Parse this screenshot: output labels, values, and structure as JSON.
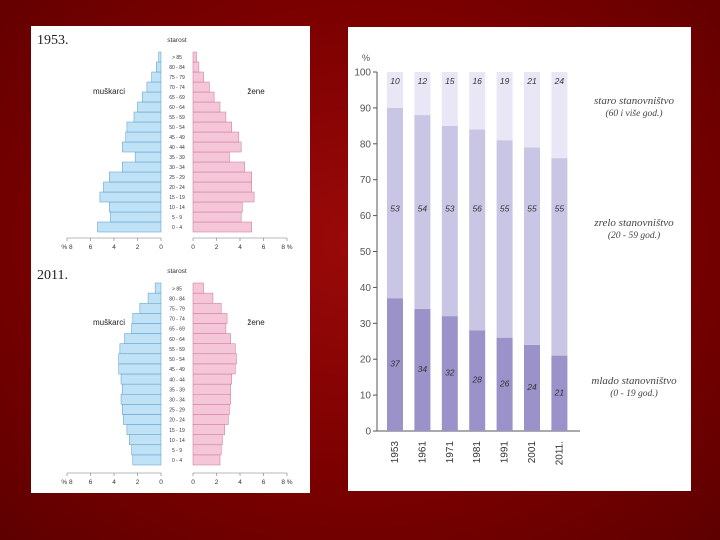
{
  "colors": {
    "male": "#bfe2f6",
    "male_stroke": "#5c99c4",
    "female": "#f5c6d8",
    "female_stroke": "#c77798",
    "young": "#9a92c8",
    "mature": "#c9c5e4",
    "old": "#e9e7f5",
    "axis": "#555555"
  },
  "pyramids": [
    {
      "year_label": "1953.",
      "center_label": "starost",
      "male_label": "muškarci",
      "female_label": "žene",
      "x_ticks": [
        "% 8",
        "6",
        "4",
        "2",
        "0",
        "0",
        "2",
        "4",
        "6",
        "8 %"
      ],
      "chart_data": {
        "type": "bar",
        "categories": [
          "0 - 4",
          "5 - 9",
          "10 - 14",
          "15 - 19",
          "20 - 24",
          "25 - 29",
          "30 - 34",
          "35 - 39",
          "40 - 44",
          "45 - 49",
          "50 - 54",
          "55 - 59",
          "60 - 64",
          "65 - 69",
          "70 - 74",
          "75 - 79",
          "80 - 84",
          "> 85"
        ],
        "series": [
          {
            "name": "muškarci",
            "values": [
              5.4,
              4.3,
              4.4,
              5.2,
              4.9,
              4.4,
              3.3,
              2.2,
              3.3,
              3.0,
              2.9,
              2.3,
              2.0,
              1.6,
              1.2,
              0.8,
              0.4,
              0.2
            ]
          },
          {
            "name": "žene",
            "values": [
              5.0,
              4.1,
              4.2,
              5.2,
              5.0,
              5.0,
              4.4,
              3.1,
              4.1,
              3.9,
              3.3,
              2.8,
              2.3,
              1.8,
              1.4,
              0.9,
              0.5,
              0.3
            ]
          }
        ],
        "xlim": [
          -8,
          8
        ]
      }
    },
    {
      "year_label": "2011.",
      "center_label": "starost",
      "male_label": "muškarci",
      "female_label": "žene",
      "x_ticks": [
        "% 8",
        "6",
        "4",
        "2",
        "0",
        "0",
        "2",
        "4",
        "6",
        "8 %"
      ],
      "chart_data": {
        "type": "bar",
        "categories": [
          "0 - 4",
          "5 - 9",
          "10 - 14",
          "15 - 19",
          "20 - 24",
          "25 - 29",
          "30 - 34",
          "35 - 39",
          "40 - 44",
          "45 - 49",
          "50 - 54",
          "55 - 59",
          "60 - 64",
          "65 - 69",
          "70 - 74",
          "75 - 79",
          "80 - 84",
          "> 85"
        ],
        "series": [
          {
            "name": "muškarci",
            "values": [
              2.4,
              2.5,
              2.7,
              2.9,
              3.2,
              3.3,
              3.4,
              3.3,
              3.4,
              3.6,
              3.6,
              3.5,
              3.1,
              2.5,
              2.4,
              1.8,
              1.1,
              0.5
            ]
          },
          {
            "name": "žene",
            "values": [
              2.3,
              2.4,
              2.5,
              2.7,
              3.0,
              3.1,
              3.2,
              3.2,
              3.3,
              3.6,
              3.7,
              3.6,
              3.2,
              2.8,
              2.9,
              2.4,
              1.7,
              0.9
            ]
          }
        ],
        "xlim": [
          -8,
          8
        ]
      }
    }
  ],
  "stacked": {
    "y_unit": "%",
    "chart_data": {
      "type": "bar",
      "categories": [
        "1953",
        "1961",
        "1971",
        "1981",
        "1991",
        "2001",
        "2011."
      ],
      "series": [
        {
          "name": "mlado stanovništvo",
          "values": [
            37,
            34,
            32,
            28,
            26,
            24,
            21
          ]
        },
        {
          "name": "zrelo stanovništvo",
          "values": [
            53,
            54,
            53,
            56,
            55,
            55,
            55
          ]
        },
        {
          "name": "staro stanovništvo",
          "values": [
            10,
            12,
            15,
            16,
            19,
            21,
            24
          ]
        }
      ],
      "y_ticks": [
        0,
        10,
        20,
        30,
        40,
        50,
        60,
        70,
        80,
        90,
        100
      ],
      "ylim": [
        0,
        100
      ]
    },
    "legend": [
      {
        "title": "staro stanovništvo",
        "subtitle": "(60 i više god.)"
      },
      {
        "title": "zrelo stanovništvo",
        "subtitle": "(20 - 59 god.)"
      },
      {
        "title": "mlado stanovništvo",
        "subtitle": "(0 - 19 god.)"
      }
    ]
  }
}
